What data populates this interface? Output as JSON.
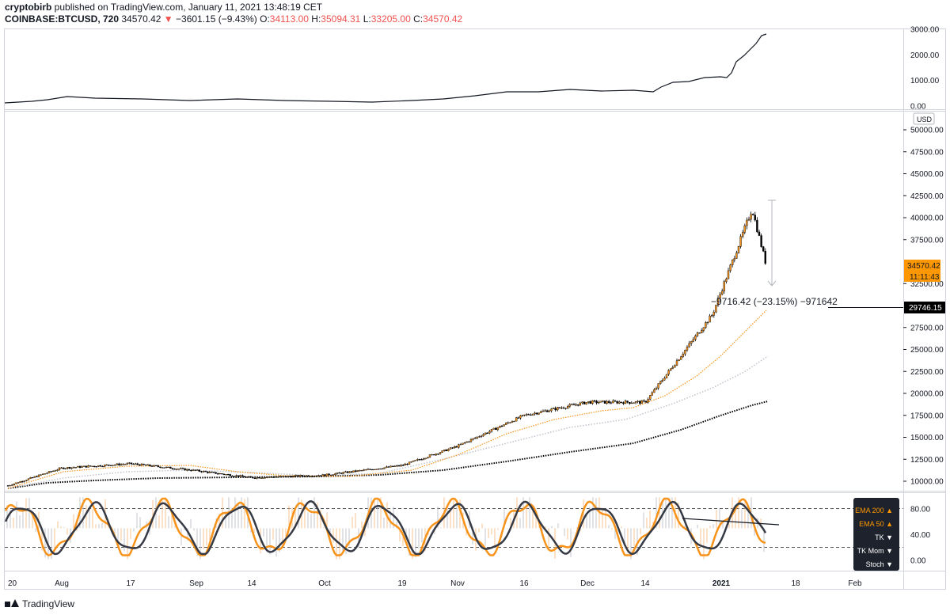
{
  "header": {
    "author": "cryptobirb",
    "published": " published on TradingView.com, January 11, 2021 13:48:19 CET",
    "symbol": "COINBASE:BTCUSD, 720",
    "last": "34570.42",
    "change_arrow": "▼",
    "change": "−3601.15 (−9.43%)",
    "o_label": "O:",
    "o": "34113.00",
    "h_label": "H:",
    "h": "35094.31",
    "l_label": "L:",
    "l": "33205.00",
    "c_label": "C:",
    "c": "34570.42"
  },
  "price_axis": {
    "currency": "USD",
    "ticks": [
      "50000.00",
      "47500.00",
      "45000.00",
      "42500.00",
      "40000.00",
      "37500.00",
      "32500.00",
      "27500.00",
      "25000.00",
      "22500.00",
      "20000.00",
      "17500.00",
      "15000.00",
      "12500.00",
      "10000.00"
    ],
    "last_price_label": "34570.42",
    "countdown_label": "11:11:43",
    "crosshair_label": "29746.15"
  },
  "measure_label": "−9716.42 (−23.15%) −971642",
  "top_panel": {
    "ticks": [
      "3000.00",
      "2000.00",
      "1000.00",
      "0.00"
    ]
  },
  "stoch_panel": {
    "ticks": [
      "80.00",
      "40.00",
      "0.00"
    ]
  },
  "time_axis": {
    "labels": [
      "20",
      "Aug",
      "17",
      "Sep",
      "14",
      "Oct",
      "19",
      "Nov",
      "16",
      "Dec",
      "14",
      "2021",
      "18",
      "Feb"
    ]
  },
  "indicator_legend": [
    {
      "label": "EMA 200 ▲",
      "color": "orange"
    },
    {
      "label": "EMA 50 ▲",
      "color": "orange"
    },
    {
      "label": "TK ▼",
      "color": "white"
    },
    {
      "label": "TK Mom ▼",
      "color": "white"
    },
    {
      "label": "Stoch ▼",
      "color": "white"
    }
  ],
  "footer": {
    "brand": "TradingView"
  },
  "colors": {
    "up": "#000000",
    "down": "#000000",
    "ema_orange": "#f7931a",
    "stoch_gray": "#434651",
    "price_tag": "#ff9800",
    "crosshair_tag": "#000000"
  },
  "chart_data": {
    "type": "candlestick",
    "symbol": "COINBASE:BTCUSD",
    "interval": "720",
    "close_path": [
      [
        "20",
        9500
      ],
      [
        "Aug",
        11500
      ],
      [
        "17",
        12000
      ],
      [
        "Sep",
        11200
      ],
      [
        "14",
        10400
      ],
      [
        "Oct",
        10700
      ],
      [
        "19",
        11800
      ],
      [
        "Nov",
        14000
      ],
      [
        "16",
        17500
      ],
      [
        "Dec",
        19000
      ],
      [
        "14",
        19000
      ],
      [
        "2021",
        29000
      ],
      [
        "2021",
        41000
      ],
      [
        "2021",
        34570
      ]
    ],
    "ohlc_last": {
      "open": 34113.0,
      "high": 35094.31,
      "low": 33205.0,
      "close": 34570.42
    },
    "change": -3601.15,
    "change_pct": -9.43,
    "ylim": [
      9000,
      52500
    ],
    "top_indicator_ylim": [
      0,
      3000
    ],
    "stoch_ylim": [
      0,
      100
    ],
    "stoch_levels": [
      80,
      20
    ]
  }
}
